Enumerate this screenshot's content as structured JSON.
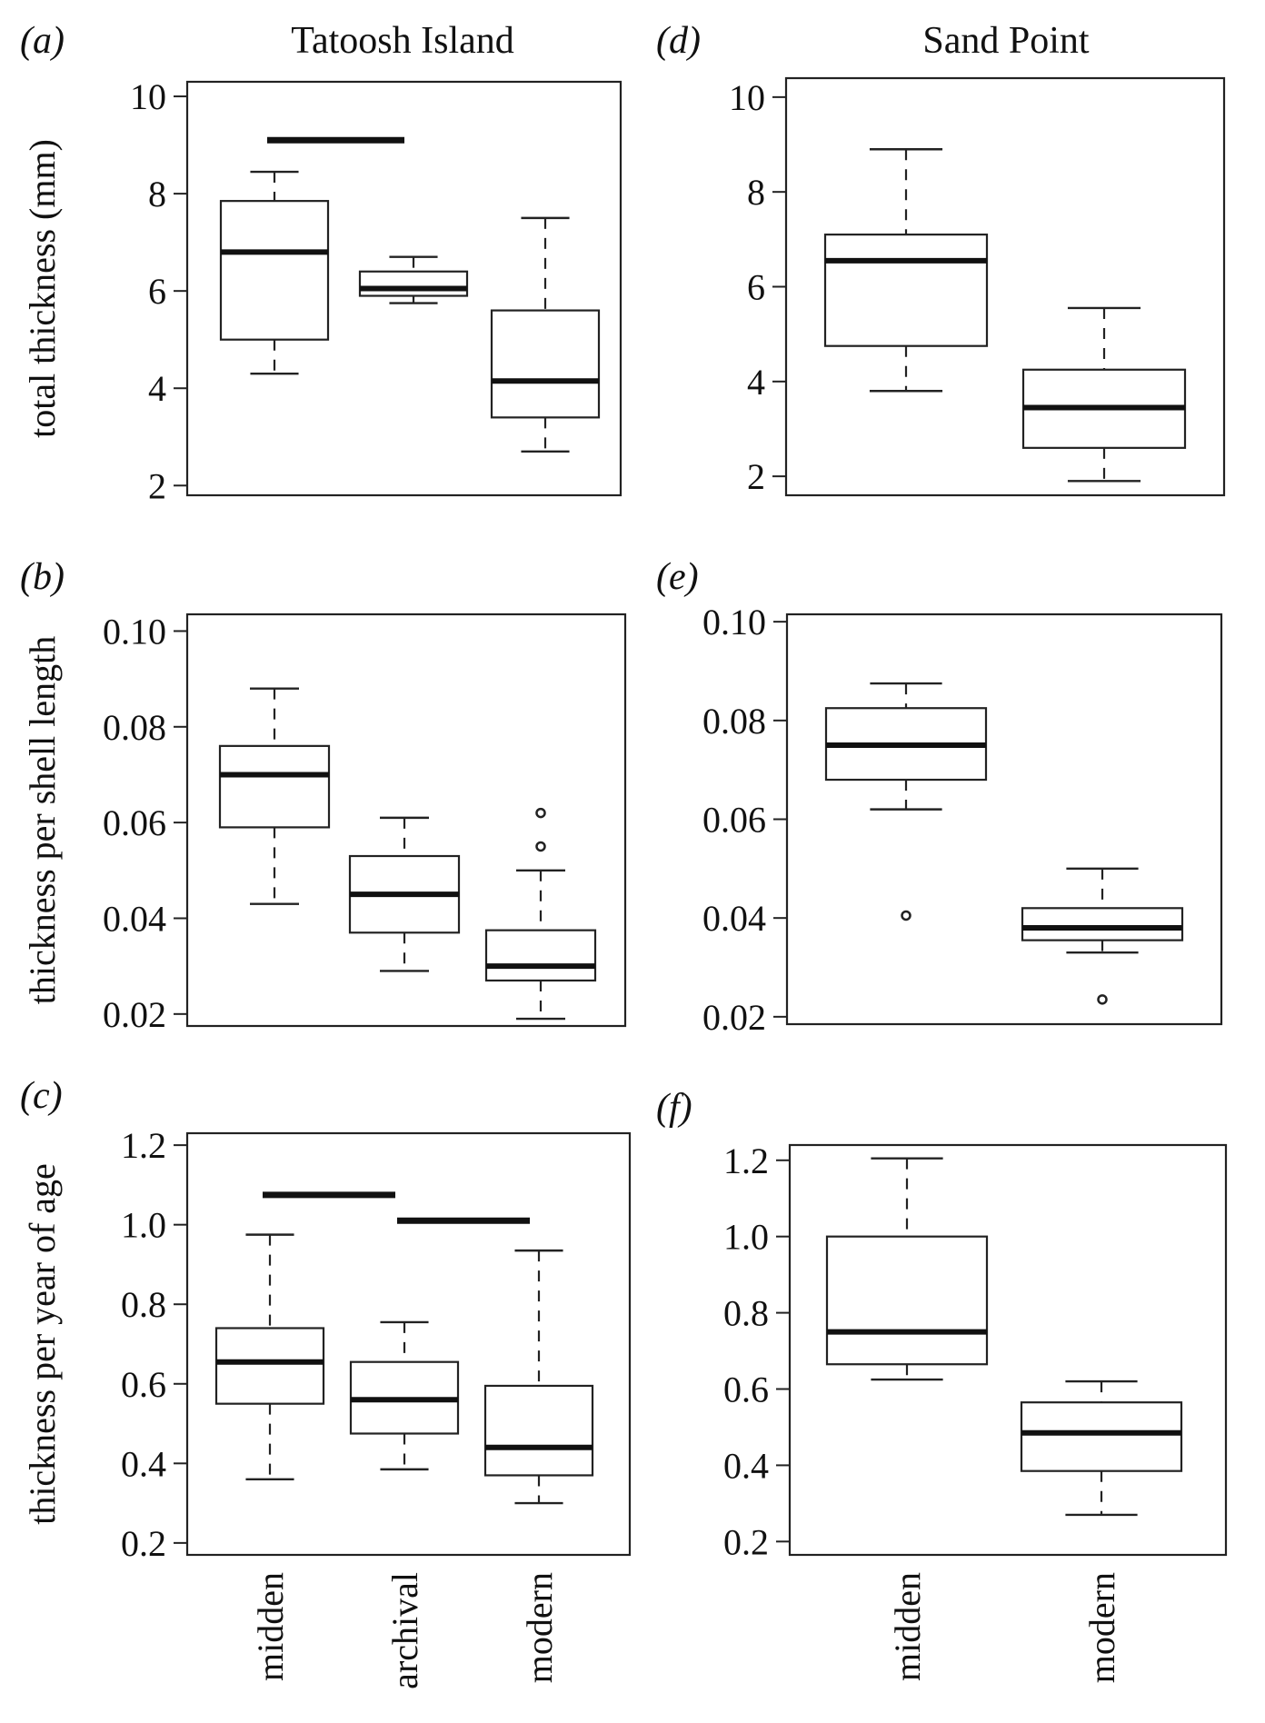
{
  "chart_data": [
    {
      "id": "a",
      "type": "box",
      "panel_label": "(a)",
      "title": "Tatoosh Island",
      "ylabel": "total thickness (mm)",
      "categories": [
        "midden",
        "archival",
        "modern"
      ],
      "ylim": [
        1.8,
        10.3
      ],
      "yticks": [
        2,
        4,
        6,
        8,
        10
      ],
      "ytick_labels": [
        "2",
        "4",
        "6",
        "8",
        "10"
      ],
      "show_x_labels": false,
      "boxes": [
        {
          "min": 4.3,
          "q1": 5.0,
          "median": 6.8,
          "q3": 7.85,
          "max": 8.45,
          "outliers": []
        },
        {
          "min": 5.75,
          "q1": 5.9,
          "median": 6.05,
          "q3": 6.4,
          "max": 6.7,
          "outliers": []
        },
        {
          "min": 2.7,
          "q1": 3.4,
          "median": 4.15,
          "q3": 5.6,
          "max": 7.5,
          "outliers": []
        }
      ],
      "significance_bars": [
        {
          "from": 0,
          "to": 1,
          "y": 9.1
        }
      ]
    },
    {
      "id": "b",
      "type": "box",
      "panel_label": "(b)",
      "title": "",
      "ylabel": "thickness per shell length",
      "categories": [
        "midden",
        "archival",
        "modern"
      ],
      "ylim": [
        0.0175,
        0.1035
      ],
      "yticks": [
        0.02,
        0.04,
        0.06,
        0.08,
        0.1
      ],
      "ytick_labels": [
        "0.02",
        "0.04",
        "0.06",
        "0.08",
        "0.10"
      ],
      "show_x_labels": false,
      "boxes": [
        {
          "min": 0.043,
          "q1": 0.059,
          "median": 0.07,
          "q3": 0.076,
          "max": 0.088,
          "outliers": []
        },
        {
          "min": 0.029,
          "q1": 0.037,
          "median": 0.045,
          "q3": 0.053,
          "max": 0.061,
          "outliers": []
        },
        {
          "min": 0.019,
          "q1": 0.027,
          "median": 0.03,
          "q3": 0.0375,
          "max": 0.05,
          "outliers": [
            0.055,
            0.062
          ]
        }
      ],
      "significance_bars": []
    },
    {
      "id": "c",
      "type": "box",
      "panel_label": "(c)",
      "title": "",
      "ylabel": "thickness per year of age",
      "categories": [
        "midden",
        "archival",
        "modern"
      ],
      "ylim": [
        0.17,
        1.23
      ],
      "yticks": [
        0.2,
        0.4,
        0.6,
        0.8,
        1.0,
        1.2
      ],
      "ytick_labels": [
        "0.2",
        "0.4",
        "0.6",
        "0.8",
        "1.0",
        "1.2"
      ],
      "show_x_labels": true,
      "boxes": [
        {
          "min": 0.36,
          "q1": 0.55,
          "median": 0.655,
          "q3": 0.74,
          "max": 0.975,
          "outliers": []
        },
        {
          "min": 0.385,
          "q1": 0.475,
          "median": 0.56,
          "q3": 0.655,
          "max": 0.755,
          "outliers": []
        },
        {
          "min": 0.3,
          "q1": 0.37,
          "median": 0.44,
          "q3": 0.595,
          "max": 0.935,
          "outliers": []
        }
      ],
      "significance_bars": [
        {
          "from": 0,
          "to": 1,
          "y": 1.075
        },
        {
          "from": 1,
          "to": 2,
          "y": 1.01
        }
      ]
    },
    {
      "id": "d",
      "type": "box",
      "panel_label": "(d)",
      "title": "Sand Point",
      "ylabel": "",
      "categories": [
        "midden",
        "modern"
      ],
      "ylim": [
        1.6,
        10.4
      ],
      "yticks": [
        2,
        4,
        6,
        8,
        10
      ],
      "ytick_labels": [
        "2",
        "4",
        "6",
        "8",
        "10"
      ],
      "show_x_labels": false,
      "boxes": [
        {
          "min": 3.8,
          "q1": 4.75,
          "median": 6.55,
          "q3": 7.1,
          "max": 8.9,
          "outliers": []
        },
        {
          "min": 1.9,
          "q1": 2.6,
          "median": 3.45,
          "q3": 4.25,
          "max": 5.55,
          "outliers": []
        }
      ],
      "significance_bars": []
    },
    {
      "id": "e",
      "type": "box",
      "panel_label": "(e)",
      "title": "",
      "ylabel": "",
      "categories": [
        "midden",
        "modern"
      ],
      "ylim": [
        0.0185,
        0.1015
      ],
      "yticks": [
        0.02,
        0.04,
        0.06,
        0.08,
        0.1
      ],
      "ytick_labels": [
        "0.02",
        "0.04",
        "0.06",
        "0.08",
        "0.10"
      ],
      "show_x_labels": false,
      "boxes": [
        {
          "min": 0.062,
          "q1": 0.068,
          "median": 0.075,
          "q3": 0.0825,
          "max": 0.0875,
          "outliers": [
            0.0405
          ]
        },
        {
          "min": 0.033,
          "q1": 0.0355,
          "median": 0.038,
          "q3": 0.042,
          "max": 0.05,
          "outliers": [
            0.0235
          ]
        }
      ],
      "significance_bars": []
    },
    {
      "id": "f",
      "type": "box",
      "panel_label": "(f)",
      "title": "",
      "ylabel": "",
      "categories": [
        "midden",
        "modern"
      ],
      "ylim": [
        0.165,
        1.24
      ],
      "yticks": [
        0.2,
        0.4,
        0.6,
        0.8,
        1.0,
        1.2
      ],
      "ytick_labels": [
        "0.2",
        "0.4",
        "0.6",
        "0.8",
        "1.0",
        "1.2"
      ],
      "show_x_labels": true,
      "boxes": [
        {
          "min": 0.625,
          "q1": 0.665,
          "median": 0.75,
          "q3": 1.0,
          "max": 1.205,
          "outliers": []
        },
        {
          "min": 0.27,
          "q1": 0.385,
          "median": 0.485,
          "q3": 0.565,
          "max": 0.62,
          "outliers": []
        }
      ],
      "significance_bars": []
    }
  ]
}
